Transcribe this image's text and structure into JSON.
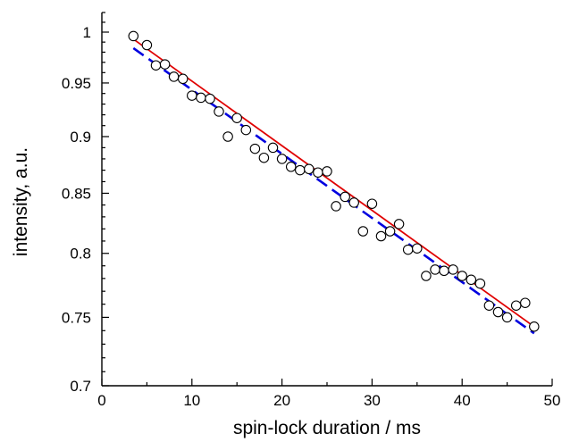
{
  "chart_data": {
    "type": "scatter",
    "title": "",
    "xlabel": "spin-lock duration / ms",
    "ylabel": "intensity, a.u.",
    "xlim": [
      0,
      50
    ],
    "ylim": [
      0.7,
      1.02
    ],
    "y_scale": "log",
    "x_ticks": [
      "0",
      "10",
      "20",
      "30",
      "40",
      "50"
    ],
    "y_ticks": [
      "0.7",
      "0.75",
      "0.8",
      "0.85",
      "0.9",
      "0.95",
      "1"
    ],
    "grid": false,
    "legend": "none",
    "series": [
      {
        "kind": "points",
        "marker": "open-circle",
        "color": "#000000",
        "x": [
          3.5,
          5,
          6,
          7,
          8,
          9,
          10,
          11,
          12,
          13,
          14,
          15,
          16,
          17,
          18,
          19,
          20,
          21,
          22,
          23,
          24,
          25,
          26,
          27,
          28,
          29,
          30,
          31,
          32,
          33,
          34,
          35,
          36,
          37,
          38,
          39,
          40,
          41,
          42,
          43,
          44,
          45,
          46,
          47,
          48
        ],
        "y": [
          0.996,
          0.987,
          0.967,
          0.968,
          0.956,
          0.954,
          0.938,
          0.936,
          0.935,
          0.923,
          0.9,
          0.917,
          0.906,
          0.889,
          0.881,
          0.89,
          0.88,
          0.873,
          0.87,
          0.871,
          0.868,
          0.869,
          0.839,
          0.847,
          0.842,
          0.818,
          0.841,
          0.814,
          0.818,
          0.824,
          0.803,
          0.804,
          0.782,
          0.787,
          0.786,
          0.787,
          0.782,
          0.779,
          0.776,
          0.759,
          0.754,
          0.75,
          0.759,
          0.761,
          0.743
        ]
      },
      {
        "kind": "fit-line",
        "color": "#e00000",
        "dash": "solid",
        "x": [
          3.5,
          48
        ],
        "y": [
          0.993,
          0.743
        ]
      },
      {
        "kind": "fit-line",
        "color": "#0000e0",
        "dash": "dashed",
        "x": [
          3.5,
          48
        ],
        "y": [
          0.984,
          0.738
        ]
      }
    ]
  }
}
